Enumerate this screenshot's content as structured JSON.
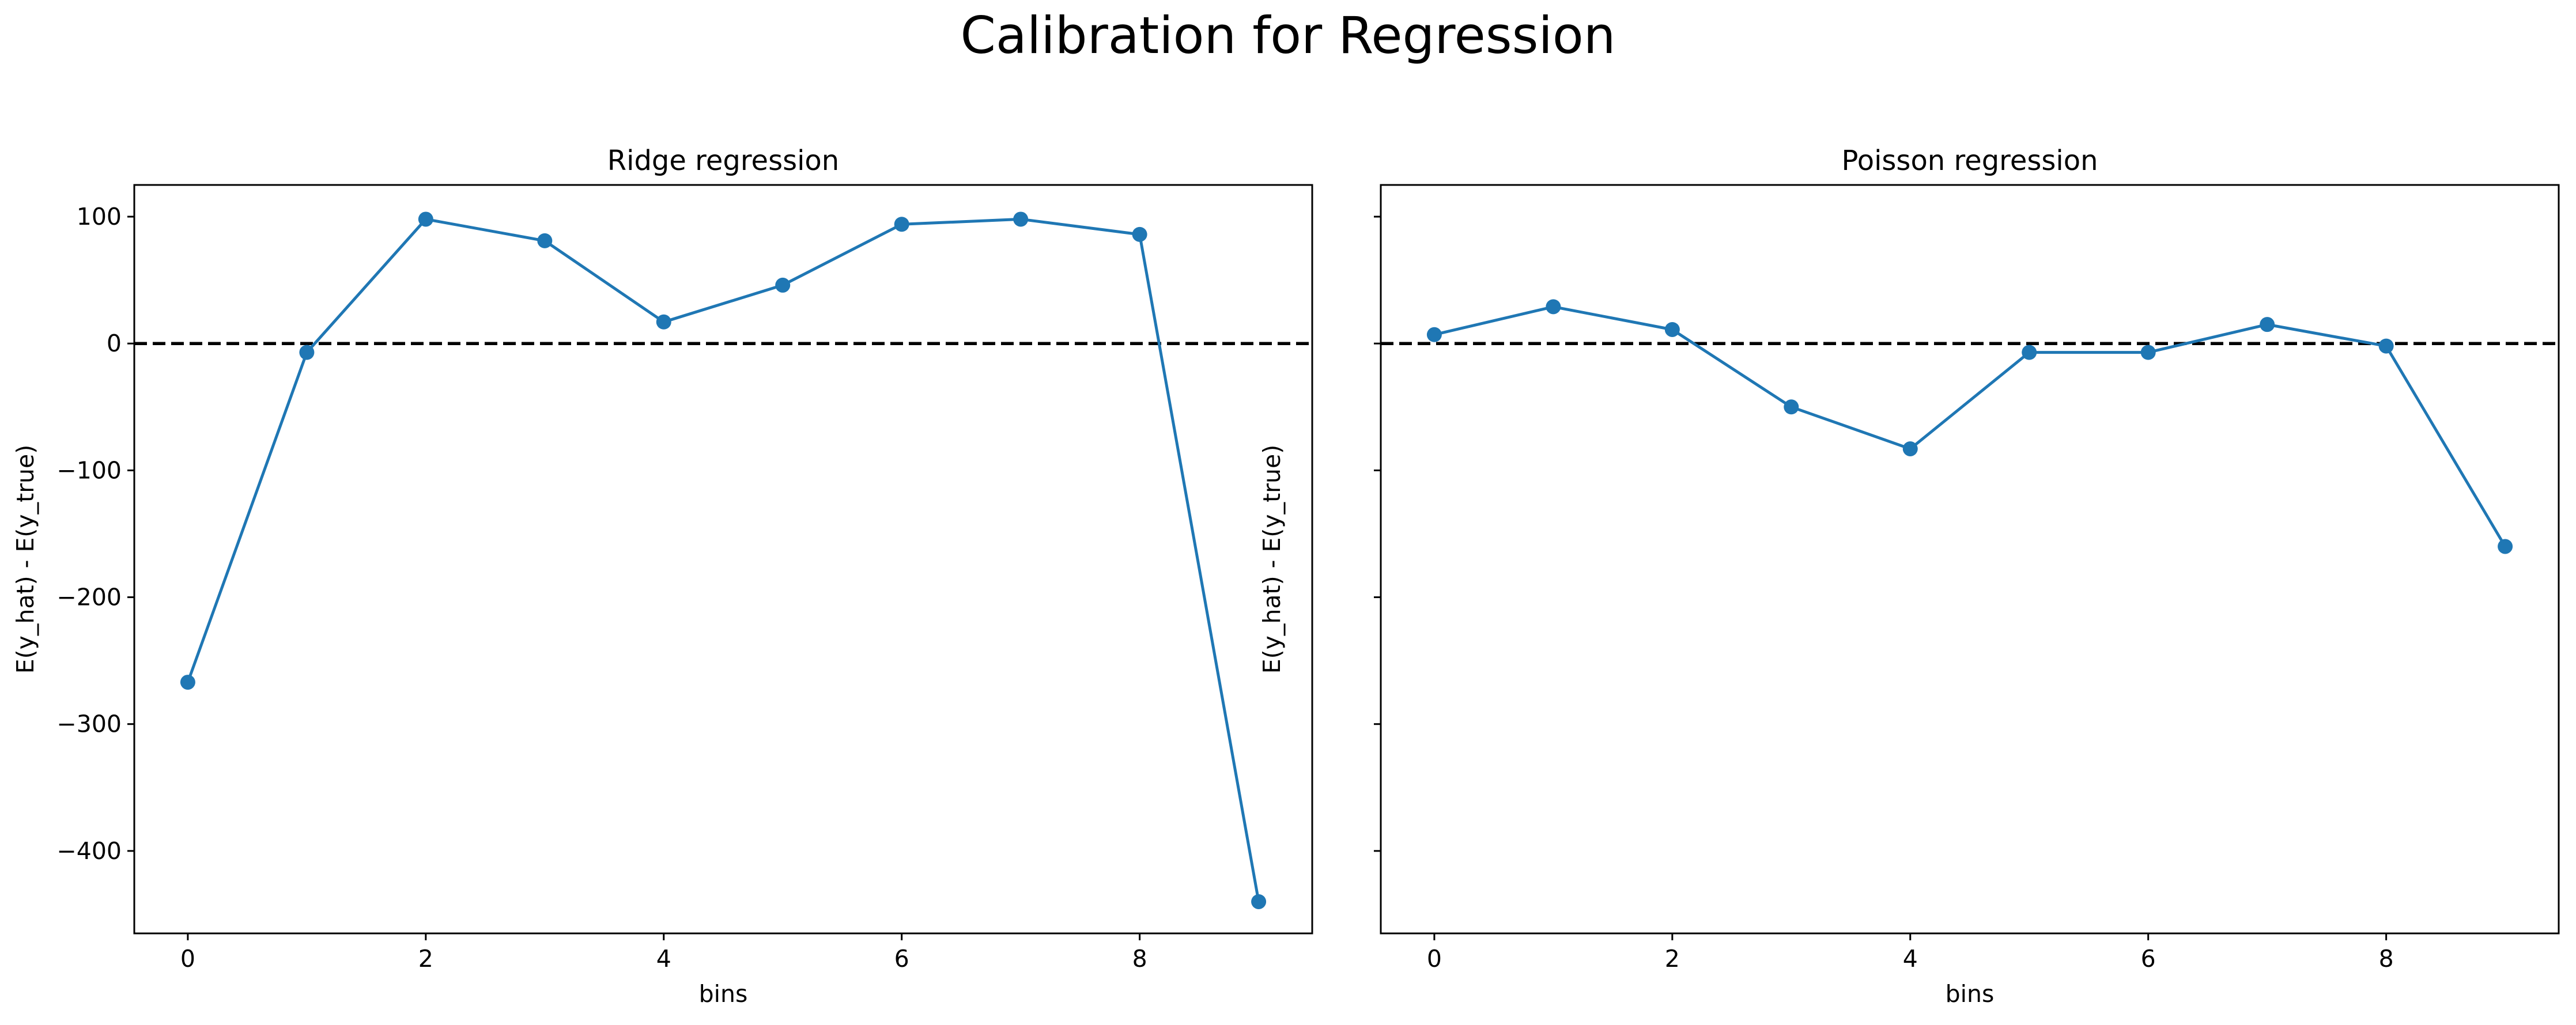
{
  "figure": {
    "suptitle": "Calibration for Regression"
  },
  "colors": {
    "series": "#1f77b4",
    "reference_line": "#000000"
  },
  "chart_data": [
    {
      "type": "line",
      "title": "Ridge regression",
      "xlabel": "bins",
      "ylabel": "E(y_hat) - E(y_true)",
      "xlim": [
        -0.45,
        9.45
      ],
      "ylim": [
        -465,
        125
      ],
      "xticks": [
        0,
        2,
        4,
        6,
        8
      ],
      "yticks": [
        100,
        0,
        -100,
        -200,
        -300,
        -400
      ],
      "ytick_labels": [
        "100",
        "0",
        "−100",
        "−200",
        "−300",
        "−400"
      ],
      "show_ytick_labels": true,
      "reference_line": {
        "y": 0,
        "style": "dashed"
      },
      "series": [
        {
          "x": [
            0,
            1,
            2,
            3,
            4,
            5,
            6,
            7,
            8,
            9
          ],
          "values": [
            -267,
            -7,
            98,
            81,
            17,
            46,
            94,
            98,
            86,
            -440
          ],
          "marker": "circle"
        }
      ]
    },
    {
      "type": "line",
      "title": "Poisson regression",
      "xlabel": "bins",
      "ylabel": "E(y_hat) - E(y_true)",
      "xlim": [
        -0.45,
        9.45
      ],
      "ylim": [
        -465,
        125
      ],
      "xticks": [
        0,
        2,
        4,
        6,
        8
      ],
      "yticks": [
        100,
        0,
        -100,
        -200,
        -300,
        -400
      ],
      "ytick_labels": [
        "100",
        "0",
        "−100",
        "−200",
        "−300",
        "−400"
      ],
      "show_ytick_labels": false,
      "reference_line": {
        "y": 0,
        "style": "dashed"
      },
      "series": [
        {
          "x": [
            0,
            1,
            2,
            3,
            4,
            5,
            6,
            7,
            8,
            9
          ],
          "values": [
            7,
            29,
            11,
            -50,
            -83,
            -7,
            -7,
            15,
            -2,
            -160
          ],
          "marker": "circle"
        }
      ]
    }
  ]
}
